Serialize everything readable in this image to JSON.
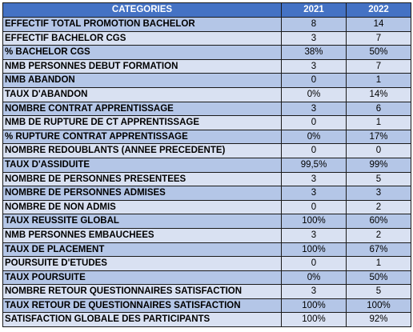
{
  "table": {
    "headers": [
      "CATEGORIES",
      "2021",
      "2022"
    ],
    "rows": [
      [
        "EFFECTIF TOTAL PROMOTION BACHELOR",
        "8",
        "14"
      ],
      [
        "EFFECTIF BACHELOR CGS",
        "3",
        "7"
      ],
      [
        "% BACHELOR CGS",
        "38%",
        "50%"
      ],
      [
        "NMB PERSONNES DEBUT FORMATION",
        "3",
        "7"
      ],
      [
        "NMB ABANDON",
        "0",
        "1"
      ],
      [
        "TAUX D'ABANDON",
        "0%",
        "14%"
      ],
      [
        "NOMBRE CONTRAT APPRENTISSAGE",
        "3",
        "6"
      ],
      [
        "NMB DE RUPTURE DE CT APPRENTISSAGE",
        "0",
        "1"
      ],
      [
        "% RUPTURE CONTRAT APPRENTISSAGE",
        "0%",
        "17%"
      ],
      [
        "NOMBRE REDOUBLANTS (ANNEE PRECEDENTE)",
        "0",
        "0"
      ],
      [
        "TAUX D'ASSIDUITE",
        "99,5%",
        "99%"
      ],
      [
        "NOMBRE DE PERSONNES PRESENTEES",
        "3",
        "5"
      ],
      [
        "NOMBRE DE PERSONNES ADMISES",
        "3",
        "3"
      ],
      [
        "NOMBRE DE NON ADMIS",
        "0",
        "2"
      ],
      [
        "TAUX REUSSITE GLOBAL",
        "100%",
        "60%"
      ],
      [
        "NMB PERSONNES EMBAUCHEES",
        "3",
        "2"
      ],
      [
        "TAUX DE PLACEMENT",
        "100%",
        "67%"
      ],
      [
        "POURSUITE D'ETUDES",
        "0",
        "1"
      ],
      [
        "TAUX POURSUITE",
        "0%",
        "50%"
      ],
      [
        "NOMBRE RETOUR QUESTIONNAIRES SATISFACTION",
        "3",
        "5"
      ],
      [
        "TAUX RETOUR DE QUESTIONNAIRES SATISFACTION",
        "100%",
        "100%"
      ],
      [
        "SATISFACTION GLOBALE DES PARTICIPANTS",
        "100%",
        "92%"
      ]
    ]
  },
  "colors": {
    "header_bg": "#4472c4",
    "row_dark": "#b4c6e7",
    "row_light": "#d9e1f2"
  }
}
